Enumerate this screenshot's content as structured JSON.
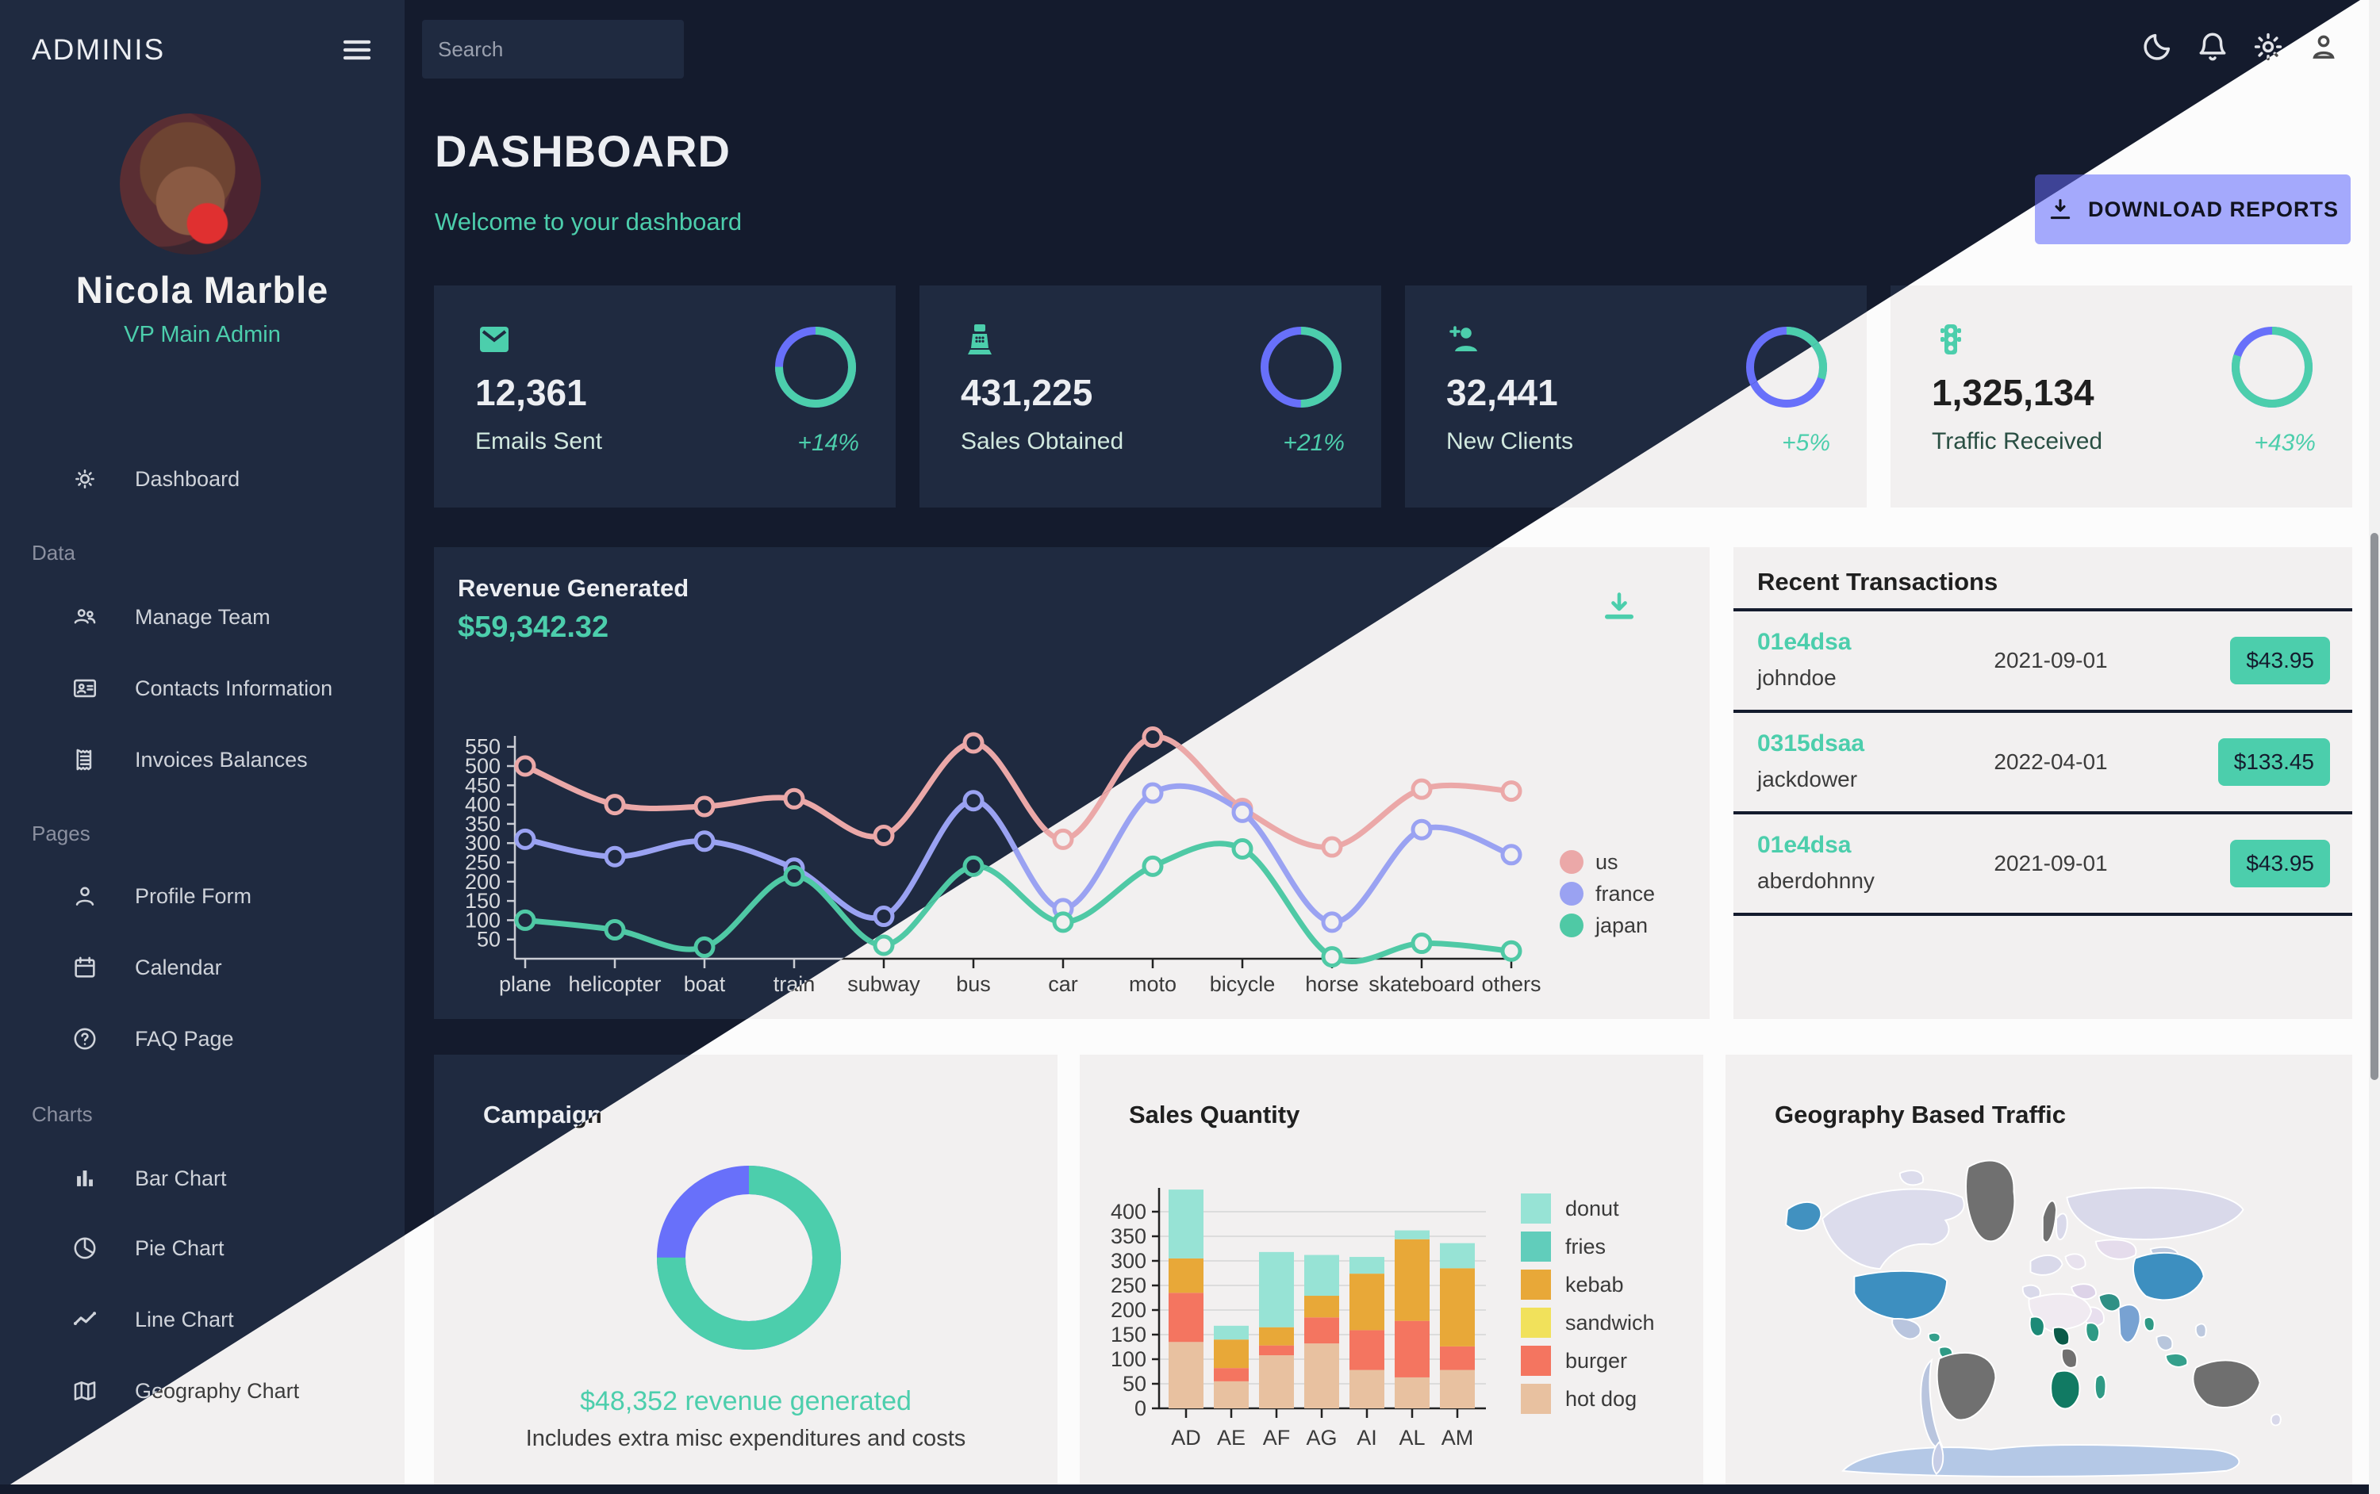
{
  "brand": "ADMINIS",
  "topbar": {
    "search_placeholder": "Search"
  },
  "user": {
    "name": "Nicola Marble",
    "role": "VP Main Admin"
  },
  "sidebar": {
    "primary_item": {
      "label": "Dashboard"
    },
    "sections": [
      {
        "label": "Data",
        "items": [
          {
            "label": "Manage Team"
          },
          {
            "label": "Contacts Information"
          },
          {
            "label": "Invoices Balances"
          }
        ]
      },
      {
        "label": "Pages",
        "items": [
          {
            "label": "Profile Form"
          },
          {
            "label": "Calendar"
          },
          {
            "label": "FAQ Page"
          }
        ]
      },
      {
        "label": "Charts",
        "items": [
          {
            "label": "Bar Chart"
          },
          {
            "label": "Pie Chart"
          },
          {
            "label": "Line Chart"
          },
          {
            "label": "Geography Chart"
          }
        ]
      }
    ]
  },
  "header": {
    "title": "DASHBOARD",
    "subtitle": "Welcome to your dashboard"
  },
  "download_button": {
    "label": "DOWNLOAD REPORTS"
  },
  "stats": [
    {
      "value": "12,361",
      "label": "Emails Sent",
      "delta": "+14%",
      "progress": 0.75
    },
    {
      "value": "431,225",
      "label": "Sales Obtained",
      "delta": "+21%",
      "progress": 0.5
    },
    {
      "value": "32,441",
      "label": "New Clients",
      "delta": "+5%",
      "progress": 0.3
    },
    {
      "value": "1,325,134",
      "label": "Traffic Received",
      "delta": "+43%",
      "progress": 0.8
    }
  ],
  "revenue": {
    "title": "Revenue Generated",
    "amount": "$59,342.32"
  },
  "transactions": {
    "title": "Recent Transactions",
    "rows": [
      {
        "id": "01e4dsa",
        "user": "johndoe",
        "date": "2021-09-01",
        "amount": "$43.95"
      },
      {
        "id": "0315dsaa",
        "user": "jackdower",
        "date": "2022-04-01",
        "amount": "$133.45"
      },
      {
        "id": "01e4dsa",
        "user": "aberdohnny",
        "date": "2021-09-01",
        "amount": "$43.95"
      }
    ]
  },
  "campaign": {
    "title": "Campaign",
    "caption": "$48,352 revenue generated",
    "subcaption": "Includes extra misc expenditures and costs"
  },
  "sales": {
    "title": "Sales Quantity"
  },
  "geo": {
    "title": "Geography Based Traffic",
    "regions": {
      "antarctica": "#b4c8e6",
      "greenland": "#707070",
      "canada": "#dcdcec",
      "canada_islands": "#dcdcec",
      "alaska": "#4191c0",
      "usa": "#3d8fc0",
      "mexico": "#b9c5de",
      "caribbean": "#35a08c",
      "venezuela": "#2f9a85",
      "brazil": "#707070",
      "andes": "#b9c5de",
      "argentina": "#c6cde6",
      "europe": "#d9d9ea",
      "europe_east": "#e8e2ee",
      "iberia": "#d9d9ea",
      "norway": "#707070",
      "sweden": "#d9d9ea",
      "russia": "#d9d9ea",
      "kazakhstan": "#e5dcec",
      "mongolia": "#bcc8de",
      "turkey": "#ddd3e8",
      "iran": "#2f9085",
      "arabia": "#e8dfee",
      "india": "#78a2d2",
      "myanmar": "#2f9a85",
      "china": "#3d8fc0",
      "se_asia": "#b8c6dc",
      "indonesia": "#35a08c",
      "philippines": "#bcc8de",
      "north_africa": "#f0eaf1",
      "west_africa": "#1d8a77",
      "nigeria": "#0b5b49",
      "horn_of_africa": "#2f9a85",
      "congo": "#707070",
      "southern_africa": "#117a63",
      "madagascar": "#2f9a85",
      "australia": "#6f6f6f",
      "new_zealand": "#d8d8ea"
    }
  },
  "theme_colors": {
    "dark_background": "#141b2d",
    "dark_card": "#1f2a40",
    "light_background": "#fcfcfc",
    "light_card": "#f2f0f0",
    "accent_green": "#4cceac",
    "accent_blue": "#6870fa",
    "button_dark": "#3e4396",
    "button_light": "#a4a9fc",
    "divider": "#141b2d"
  },
  "chart_data": [
    {
      "id": "revenue-line",
      "type": "line",
      "title": "Revenue Generated",
      "subtitle": "$59,342.32",
      "x_categories": [
        "plane",
        "helicopter",
        "boat",
        "train",
        "subway",
        "bus",
        "car",
        "moto",
        "bicycle",
        "horse",
        "skateboard",
        "others"
      ],
      "series": [
        {
          "name": "us",
          "color": "#eba8a8",
          "values": [
            500,
            400,
            395,
            415,
            320,
            560,
            310,
            575,
            390,
            290,
            440,
            435
          ]
        },
        {
          "name": "france",
          "color": "#9aa2f2",
          "values": [
            310,
            265,
            305,
            235,
            110,
            410,
            130,
            430,
            380,
            95,
            335,
            270
          ]
        },
        {
          "name": "japan",
          "color": "#4fc9a5",
          "values": [
            100,
            75,
            30,
            215,
            35,
            240,
            95,
            240,
            285,
            5,
            40,
            20
          ]
        }
      ],
      "ylim": [
        0,
        600
      ],
      "ytick_step": 50,
      "yticks": [
        50,
        100,
        150,
        200,
        250,
        300,
        350,
        400,
        450,
        500,
        550
      ],
      "grid": false,
      "legend_position": "right"
    },
    {
      "id": "sales-bar",
      "type": "bar",
      "title": "Sales Quantity",
      "categories": [
        "AD",
        "AE",
        "AF",
        "AG",
        "AI",
        "AL",
        "AM"
      ],
      "stack_order": [
        "hot dog",
        "burger",
        "sandwich",
        "kebab",
        "fries",
        "donut"
      ],
      "series": [
        {
          "name": "hot dog",
          "color": "#e8c1a0",
          "values": [
            135,
            55,
            108,
            132,
            78,
            63,
            78
          ]
        },
        {
          "name": "burger",
          "color": "#f47560",
          "values": [
            100,
            27,
            20,
            53,
            81,
            115,
            48
          ]
        },
        {
          "name": "sandwich",
          "color": "#f1e15b",
          "values": [
            0,
            0,
            0,
            0,
            0,
            0,
            0
          ]
        },
        {
          "name": "kebab",
          "color": "#e8a838",
          "values": [
            70,
            58,
            37,
            44,
            115,
            166,
            159
          ]
        },
        {
          "name": "fries",
          "color": "#61cdbb",
          "values": [
            0,
            0,
            0,
            0,
            0,
            0,
            0
          ]
        },
        {
          "name": "donut",
          "color": "#97e3d5",
          "values": [
            140,
            28,
            153,
            83,
            34,
            18,
            51
          ]
        }
      ],
      "ylim": [
        0,
        450
      ],
      "ytick_step": 50,
      "grid": true,
      "legend": [
        "donut",
        "fries",
        "kebab",
        "sandwich",
        "burger",
        "hot dog"
      ],
      "legend_position": "right"
    },
    {
      "id": "campaign-donut",
      "type": "donut",
      "progress": 0.75,
      "progress_color": "#4cceac",
      "rest_color": "#6870fa"
    },
    {
      "id": "stat-rings",
      "type": "progress-rings",
      "values": [
        0.75,
        0.5,
        0.3,
        0.8
      ],
      "progress_color": "#4cceac",
      "rest_color": "#6870fa"
    }
  ]
}
